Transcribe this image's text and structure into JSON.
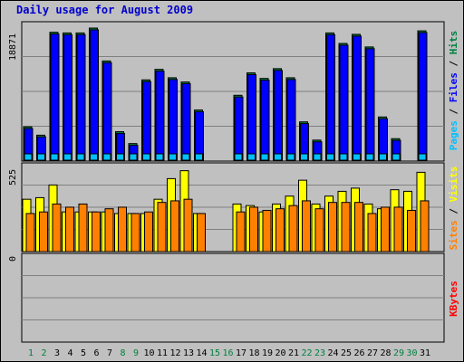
{
  "title": "Daily usage for August 2009",
  "colors": {
    "hits": "#008040",
    "files": "#0000ff",
    "pages": "#00c0ff",
    "visits": "#ffff00",
    "sites": "#ff8000",
    "kbytes": "#ff0000",
    "weekday_label": "#000000",
    "weekend_label": "#008040"
  },
  "chart_data": [
    {
      "type": "bar",
      "panel": "top",
      "categories": [
        "1",
        "2",
        "3",
        "4",
        "5",
        "6",
        "7",
        "8",
        "9",
        "10",
        "11",
        "12",
        "13",
        "14",
        "15",
        "16",
        "17",
        "18",
        "19",
        "20",
        "21",
        "22",
        "23",
        "24",
        "25",
        "26",
        "27",
        "28",
        "29",
        "30",
        "31"
      ],
      "ymax_label": "18871",
      "ylim": [
        0,
        18871
      ],
      "right_label": [
        "Pages",
        "Files",
        "Hits"
      ],
      "series": [
        {
          "name": "Hits",
          "values": [
            4900,
            3700,
            18400,
            18300,
            18300,
            19000,
            14300,
            4200,
            2500,
            11600,
            13100,
            11900,
            11300,
            7300,
            0,
            0,
            9400,
            12600,
            11800,
            13200,
            11900,
            5600,
            3000,
            18300,
            16800,
            18100,
            16300,
            6300,
            3200,
            0,
            18600
          ]
        },
        {
          "name": "Files",
          "values": [
            4650,
            3450,
            18150,
            18050,
            18050,
            18750,
            14050,
            3950,
            2250,
            11350,
            12850,
            11650,
            11050,
            7050,
            0,
            0,
            9150,
            12350,
            11550,
            12950,
            11650,
            5350,
            2750,
            18050,
            16550,
            17850,
            16050,
            6050,
            2950,
            0,
            18350
          ]
        },
        {
          "name": "Pages",
          "values": [
            950,
            1000,
            850,
            500,
            550,
            400,
            450,
            700,
            350,
            550,
            600,
            1100,
            1150,
            450,
            0,
            0,
            500,
            500,
            450,
            550,
            700,
            1200,
            800,
            450,
            500,
            550,
            900,
            550,
            700,
            0,
            1100
          ]
        }
      ]
    },
    {
      "type": "bar",
      "panel": "middle",
      "categories": [
        "1",
        "2",
        "3",
        "4",
        "5",
        "6",
        "7",
        "8",
        "9",
        "10",
        "11",
        "12",
        "13",
        "14",
        "15",
        "16",
        "17",
        "18",
        "19",
        "20",
        "21",
        "22",
        "23",
        "24",
        "25",
        "26",
        "27",
        "28",
        "29",
        "30",
        "31"
      ],
      "ymax_label": "525",
      "ylim": [
        0,
        525
      ],
      "right_label": [
        "Sites",
        "Visits"
      ],
      "series": [
        {
          "name": "Visits",
          "values": [
            330,
            340,
            420,
            250,
            250,
            250,
            250,
            240,
            240,
            240,
            330,
            460,
            510,
            240,
            0,
            0,
            300,
            290,
            250,
            300,
            350,
            450,
            300,
            350,
            380,
            400,
            300,
            270,
            390,
            380,
            500
          ]
        },
        {
          "name": "Sites",
          "values": [
            240,
            250,
            300,
            280,
            300,
            250,
            270,
            280,
            240,
            250,
            310,
            320,
            330,
            240,
            0,
            0,
            250,
            280,
            260,
            270,
            290,
            320,
            270,
            310,
            310,
            310,
            240,
            280,
            280,
            260,
            320
          ]
        }
      ]
    },
    {
      "type": "bar",
      "panel": "bottom",
      "categories": [
        "1",
        "2",
        "3",
        "4",
        "5",
        "6",
        "7",
        "8",
        "9",
        "10",
        "11",
        "12",
        "13",
        "14",
        "15",
        "16",
        "17",
        "18",
        "19",
        "20",
        "21",
        "22",
        "23",
        "24",
        "25",
        "26",
        "27",
        "28",
        "29",
        "30",
        "31"
      ],
      "ymax_label": "0",
      "ylim": [
        0,
        1
      ],
      "right_label": [
        "KBytes"
      ],
      "series": [
        {
          "name": "KBytes",
          "values": [
            0,
            0,
            0,
            0,
            0,
            0,
            0,
            0,
            0,
            0,
            0,
            0,
            0,
            0,
            0,
            0,
            0,
            0,
            0,
            0,
            0,
            0,
            0,
            0,
            0,
            0,
            0,
            0,
            0,
            0,
            0
          ]
        }
      ]
    }
  ],
  "weekend_days": [
    "1",
    "2",
    "8",
    "9",
    "15",
    "16",
    "22",
    "23",
    "29",
    "30"
  ]
}
